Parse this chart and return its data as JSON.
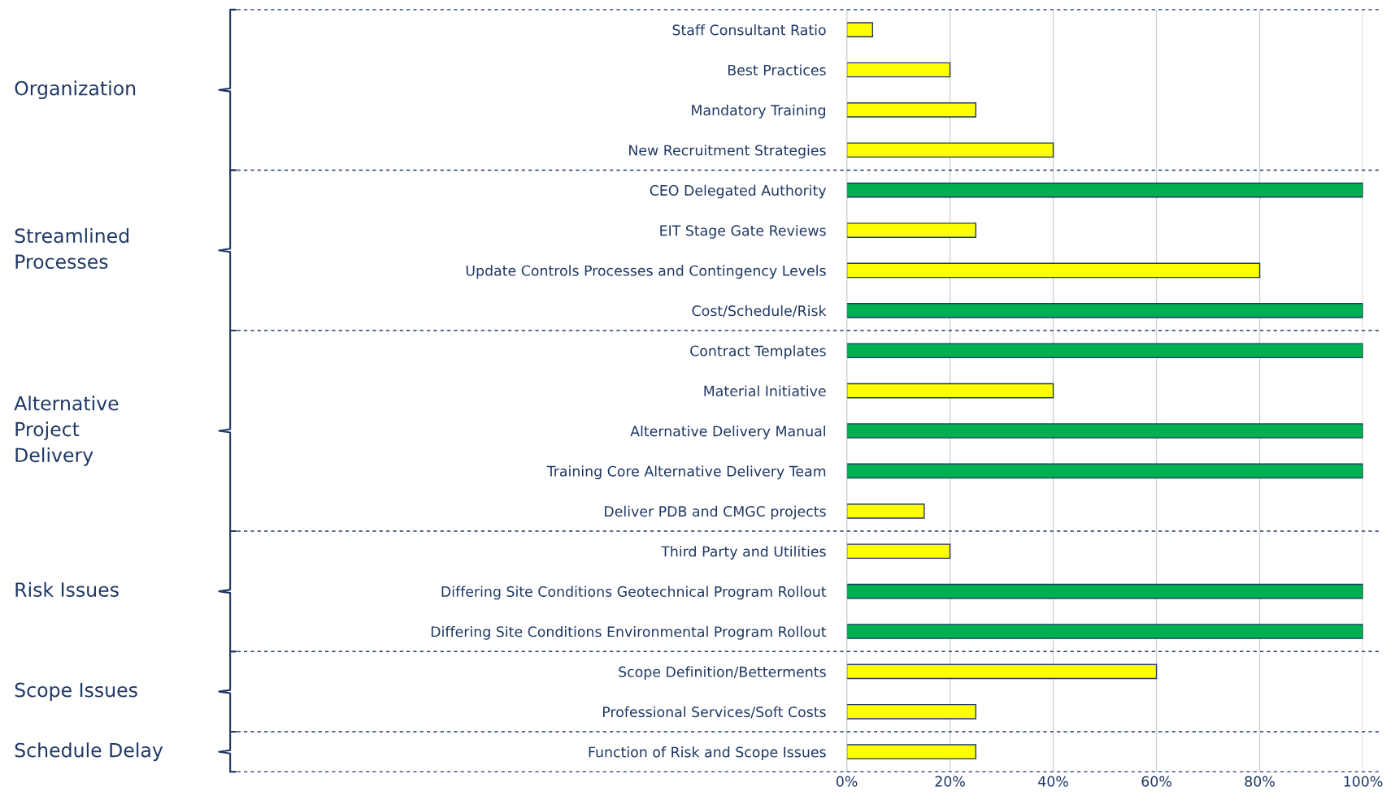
{
  "chart_data": {
    "type": "bar",
    "orientation": "horizontal",
    "categories": [
      "Staff Consultant Ratio",
      "Best Practices",
      "Mandatory Training",
      "New Recruitment Strategies",
      "CEO Delegated Authority",
      "EIT Stage Gate Reviews",
      "Update Controls Processes and Contingency Levels",
      "Cost/Schedule/Risk",
      "Contract Templates",
      "Material Initiative",
      "Alternative Delivery Manual",
      "Training Core Alternative Delivery Team",
      "Deliver PDB and CMGC projects",
      "Third Party and Utilities",
      "Differing Site Conditions Geotechnical Program Rollout",
      "Differing Site Conditions Environmental Program Rollout",
      "Scope Definition/Betterments",
      "Professional Services/Soft Costs",
      "Function of Risk and Scope Issues"
    ],
    "values": [
      5,
      20,
      25,
      40,
      100,
      25,
      80,
      100,
      100,
      40,
      100,
      100,
      15,
      20,
      100,
      100,
      60,
      25,
      25
    ],
    "colors": [
      "#ffff00",
      "#ffff00",
      "#ffff00",
      "#ffff00",
      "#00b050",
      "#ffff00",
      "#ffff00",
      "#00b050",
      "#00b050",
      "#ffff00",
      "#00b050",
      "#00b050",
      "#ffff00",
      "#ffff00",
      "#00b050",
      "#00b050",
      "#ffff00",
      "#ffff00",
      "#ffff00"
    ],
    "xlim": [
      0,
      100
    ],
    "xticks": [
      {
        "value": 0,
        "label": "0%"
      },
      {
        "value": 20,
        "label": "20%"
      },
      {
        "value": 40,
        "label": "40%"
      },
      {
        "value": 60,
        "label": "60%"
      },
      {
        "value": 80,
        "label": "80%"
      },
      {
        "value": 100,
        "label": "100%"
      }
    ],
    "grid": "x",
    "legend": false,
    "annotations": [
      "Organization",
      "Streamlined\nProcesses",
      "Alternative\nProject\nDelivery",
      "Risk Issues",
      "Scope Issues",
      "Schedule Delay"
    ]
  }
}
